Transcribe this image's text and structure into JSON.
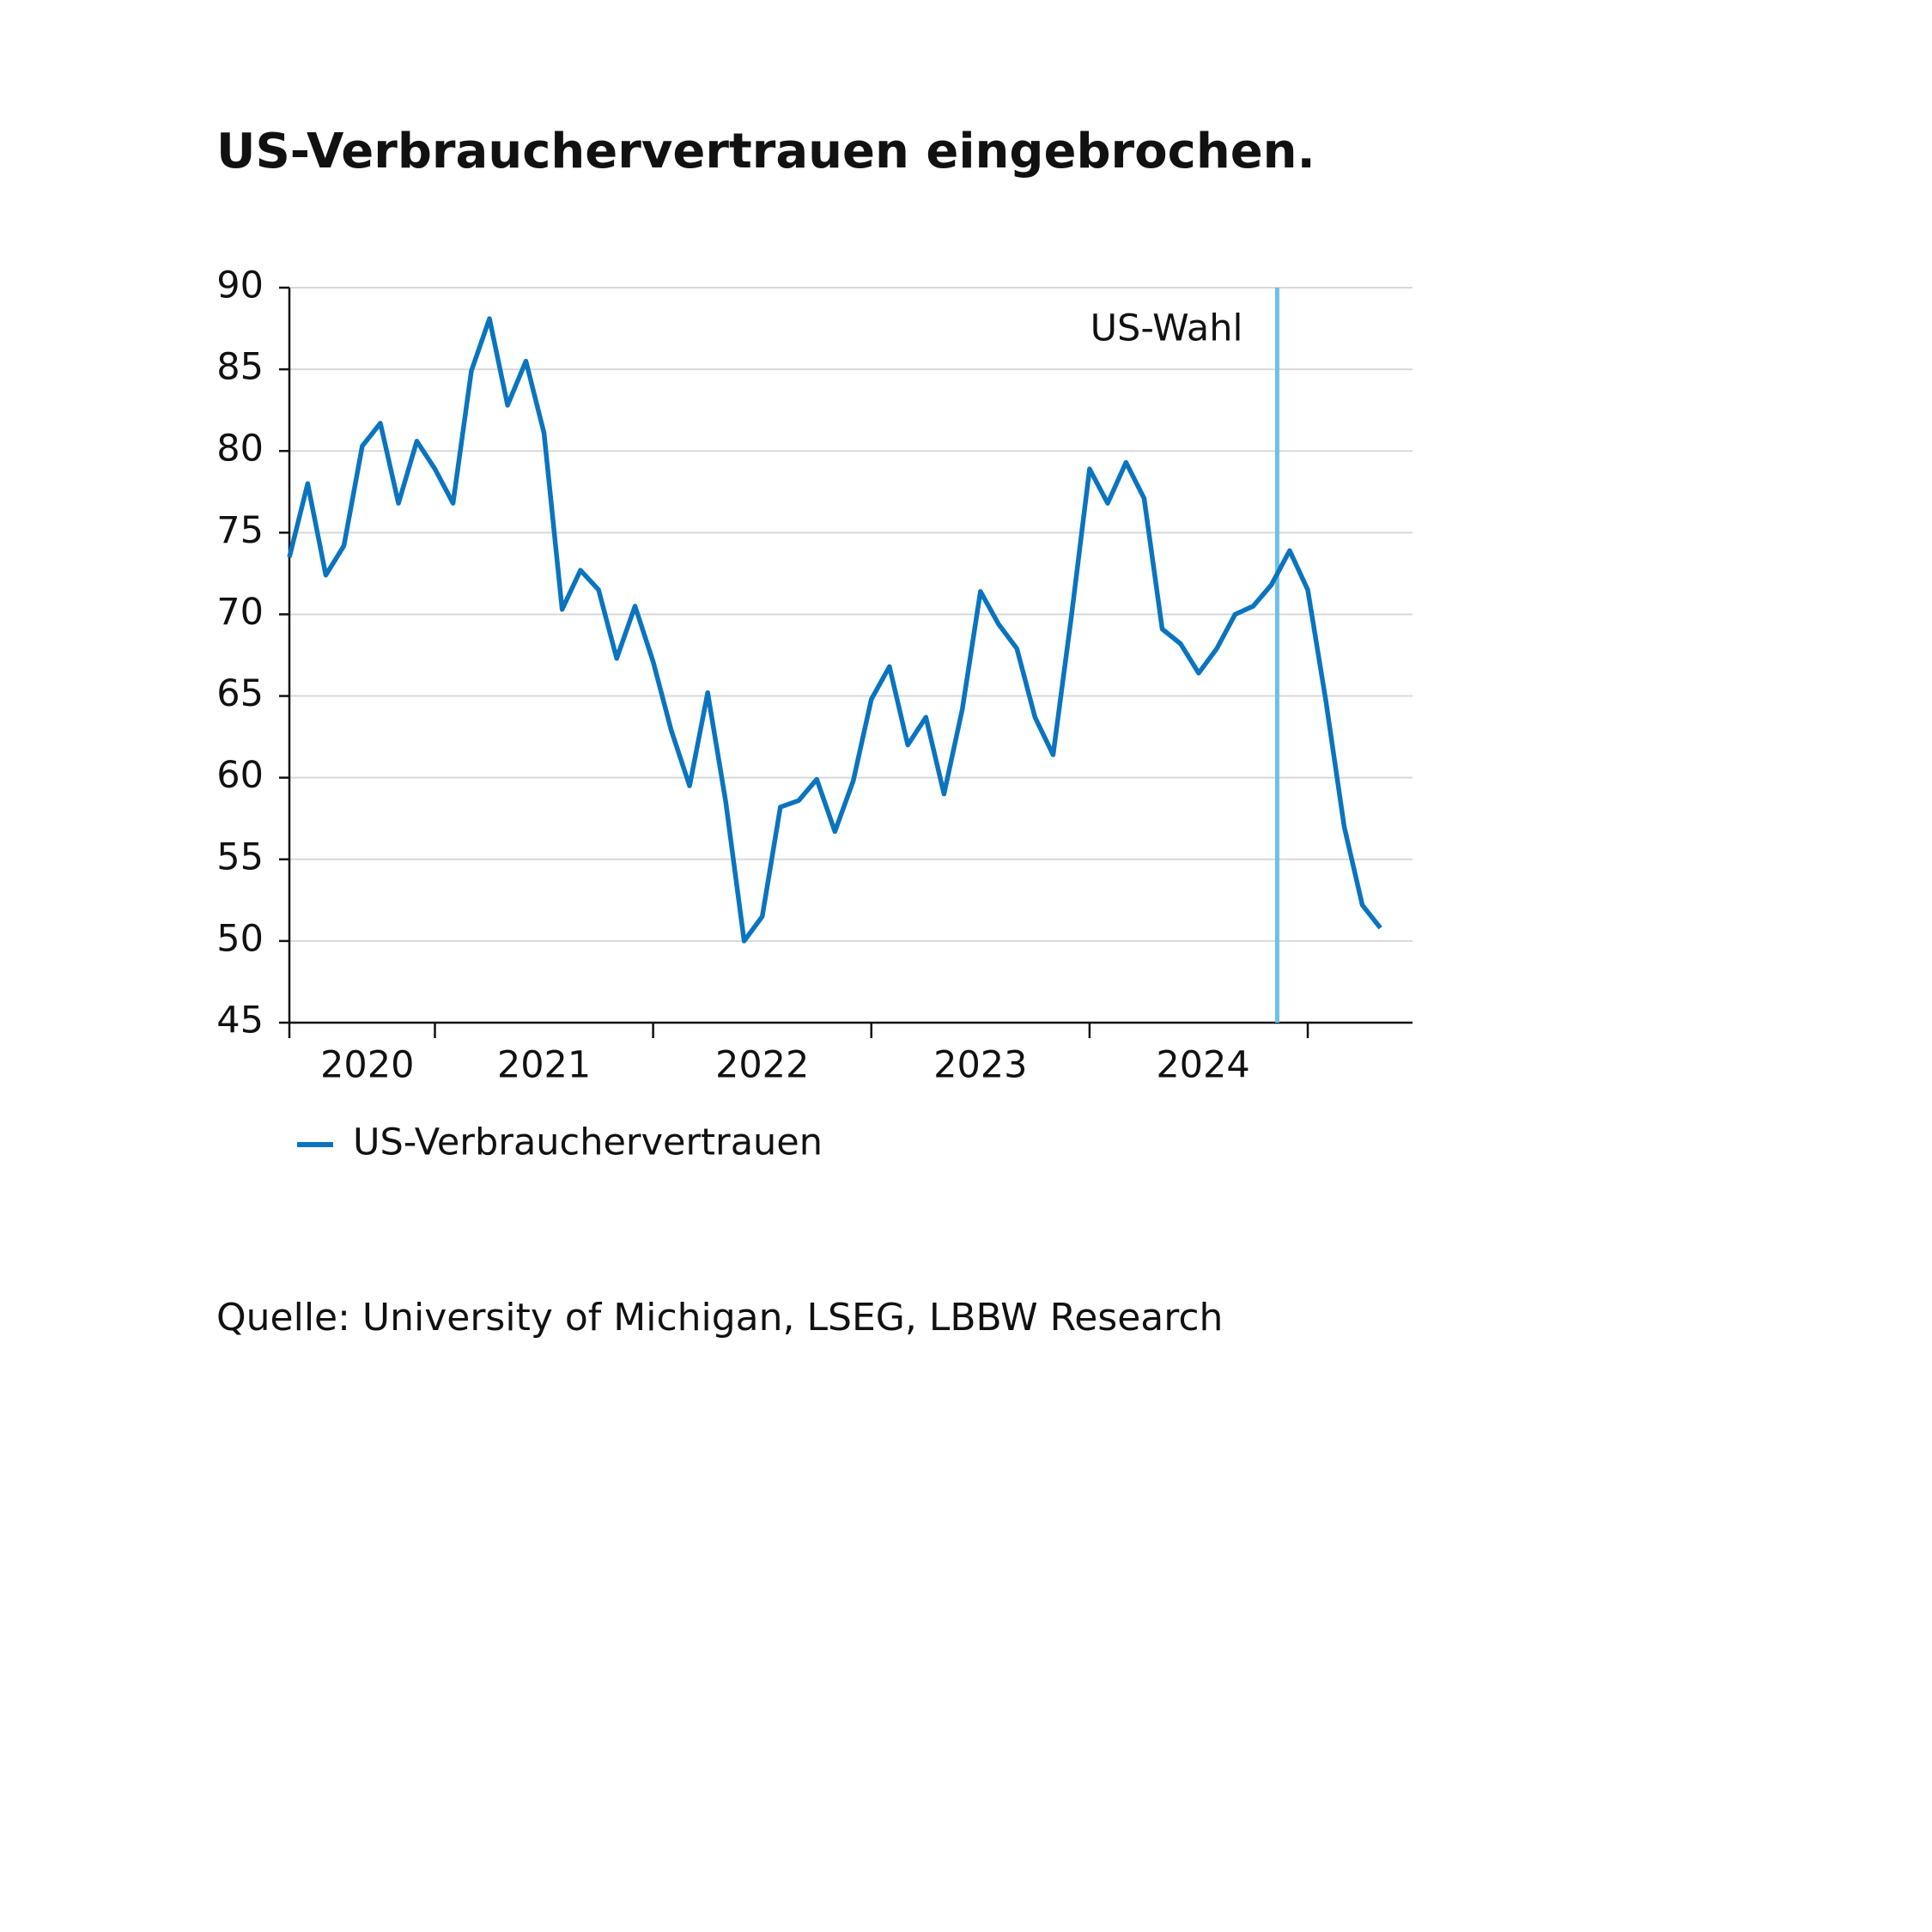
{
  "chart_data": {
    "type": "line",
    "title": "US-Verbrauchervertrauen eingebrochen.",
    "source": "Quelle: University of Michigan, LSEG, LBBW Research",
    "x": [
      2020.333,
      2020.417,
      2020.5,
      2020.583,
      2020.667,
      2020.75,
      2020.833,
      2020.917,
      2021.0,
      2021.083,
      2021.167,
      2021.25,
      2021.333,
      2021.417,
      2021.5,
      2021.583,
      2021.667,
      2021.75,
      2021.833,
      2021.917,
      2022.0,
      2022.083,
      2022.167,
      2022.25,
      2022.333,
      2022.417,
      2022.5,
      2022.583,
      2022.667,
      2022.75,
      2022.833,
      2022.917,
      2023.0,
      2023.083,
      2023.167,
      2023.25,
      2023.333,
      2023.417,
      2023.5,
      2023.583,
      2023.667,
      2023.75,
      2023.833,
      2023.917,
      2024.0,
      2024.083,
      2024.167,
      2024.25,
      2024.333,
      2024.417,
      2024.5,
      2024.583,
      2024.667,
      2024.75,
      2024.833,
      2024.917,
      2025.0,
      2025.083,
      2025.167,
      2025.25,
      2025.333
    ],
    "series": [
      {
        "name": "US-Verbrauchervertrauen",
        "color": "#0a74bf",
        "values": [
          73.5,
          78.0,
          72.4,
          74.2,
          80.3,
          81.7,
          76.8,
          80.6,
          78.9,
          76.8,
          84.9,
          88.1,
          82.8,
          85.5,
          81.1,
          70.3,
          72.7,
          71.5,
          67.3,
          70.5,
          67.1,
          62.9,
          59.5,
          65.2,
          58.5,
          50.0,
          51.5,
          58.2,
          58.6,
          59.9,
          56.7,
          59.8,
          64.8,
          66.8,
          62.0,
          63.7,
          59.0,
          64.2,
          71.4,
          69.4,
          67.9,
          63.7,
          61.4,
          69.9,
          78.9,
          76.8,
          79.3,
          77.1,
          69.1,
          68.2,
          66.4,
          67.9,
          70.0,
          70.5,
          71.8,
          73.9,
          71.5,
          64.7,
          57.0,
          52.2,
          50.8
        ]
      }
    ],
    "xlim": [
      2020.333,
      2025.48
    ],
    "xticks": [
      2020.333,
      2021,
      2022,
      2023,
      2024,
      2025
    ],
    "year_labels": [
      {
        "value": 2020.69,
        "label": "2020"
      },
      {
        "value": 2021.5,
        "label": "2021"
      },
      {
        "value": 2022.5,
        "label": "2022"
      },
      {
        "value": 2023.5,
        "label": "2023"
      },
      {
        "value": 2024.52,
        "label": "2024"
      }
    ],
    "ylim": [
      45,
      90
    ],
    "yticks": [
      45,
      50,
      55,
      60,
      65,
      70,
      75,
      80,
      85,
      90
    ],
    "grid": true,
    "annotation": {
      "x": 2024.86,
      "label": "US-Wahl",
      "color": "#6cc0ec"
    }
  }
}
